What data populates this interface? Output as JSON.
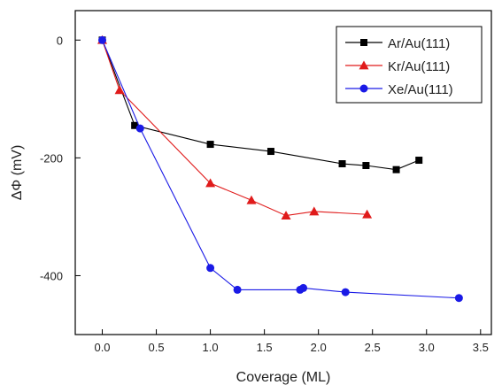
{
  "chart_data": {
    "type": "line",
    "xlabel": "Coverage (ML)",
    "ylabel": "ΔΦ (mV)",
    "xlim": [
      -0.25,
      3.6
    ],
    "ylim": [
      -500,
      50
    ],
    "xticks": [
      0.0,
      0.5,
      1.0,
      1.5,
      2.0,
      2.5,
      3.0,
      3.5
    ],
    "xtick_labels": [
      "0.0",
      "0.5",
      "1.0",
      "1.5",
      "2.0",
      "2.5",
      "3.0",
      "3.5"
    ],
    "yticks": [
      0,
      -200,
      -400
    ],
    "ytick_labels": [
      "0",
      "-200",
      "-400"
    ],
    "legend_position": "top-right",
    "grid": false,
    "series": [
      {
        "name": "Ar/Au(111)",
        "color": "#000000",
        "marker": "square",
        "x": [
          0.0,
          0.3,
          1.0,
          1.56,
          2.22,
          2.44,
          2.72,
          2.93
        ],
        "y": [
          0,
          -145,
          -177,
          -189,
          -210,
          -213,
          -220,
          -204
        ]
      },
      {
        "name": "Kr/Au(111)",
        "color": "#e01b1b",
        "marker": "triangle",
        "x": [
          0.0,
          0.16,
          1.0,
          1.38,
          1.7,
          1.96,
          2.45
        ],
        "y": [
          0,
          -85,
          -243,
          -272,
          -298,
          -291,
          -296
        ]
      },
      {
        "name": "Xe/Au(111)",
        "color": "#1a1ae6",
        "marker": "circle",
        "x": [
          0.0,
          0.35,
          1.0,
          1.25,
          1.83,
          1.86,
          2.25,
          3.3
        ],
        "y": [
          0,
          -150,
          -387,
          -424,
          -424,
          -421,
          -428,
          -438
        ]
      }
    ]
  }
}
